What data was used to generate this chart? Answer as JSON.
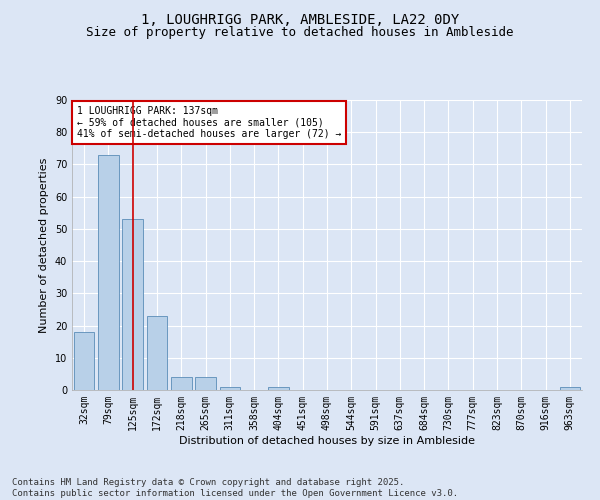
{
  "title": "1, LOUGHRIGG PARK, AMBLESIDE, LA22 0DY",
  "subtitle": "Size of property relative to detached houses in Ambleside",
  "xlabel": "Distribution of detached houses by size in Ambleside",
  "ylabel": "Number of detached properties",
  "categories": [
    "32sqm",
    "79sqm",
    "125sqm",
    "172sqm",
    "218sqm",
    "265sqm",
    "311sqm",
    "358sqm",
    "404sqm",
    "451sqm",
    "498sqm",
    "544sqm",
    "591sqm",
    "637sqm",
    "684sqm",
    "730sqm",
    "777sqm",
    "823sqm",
    "870sqm",
    "916sqm",
    "963sqm"
  ],
  "values": [
    18,
    73,
    53,
    23,
    4,
    4,
    1,
    0,
    1,
    0,
    0,
    0,
    0,
    0,
    0,
    0,
    0,
    0,
    0,
    0,
    1
  ],
  "bar_color": "#b8d0e8",
  "bar_edge_color": "#5b8db8",
  "vline_x": 2,
  "vline_color": "#cc0000",
  "annotation_box_text": "1 LOUGHRIGG PARK: 137sqm\n← 59% of detached houses are smaller (105)\n41% of semi-detached houses are larger (72) →",
  "annotation_box_color": "#cc0000",
  "annotation_fill": "#ffffff",
  "ylim": [
    0,
    90
  ],
  "yticks": [
    0,
    10,
    20,
    30,
    40,
    50,
    60,
    70,
    80,
    90
  ],
  "background_color": "#dce6f5",
  "plot_bg_color": "#dce6f5",
  "grid_color": "#ffffff",
  "footer_text": "Contains HM Land Registry data © Crown copyright and database right 2025.\nContains public sector information licensed under the Open Government Licence v3.0.",
  "title_fontsize": 10,
  "subtitle_fontsize": 9,
  "label_fontsize": 8,
  "tick_fontsize": 7,
  "footer_fontsize": 6.5
}
